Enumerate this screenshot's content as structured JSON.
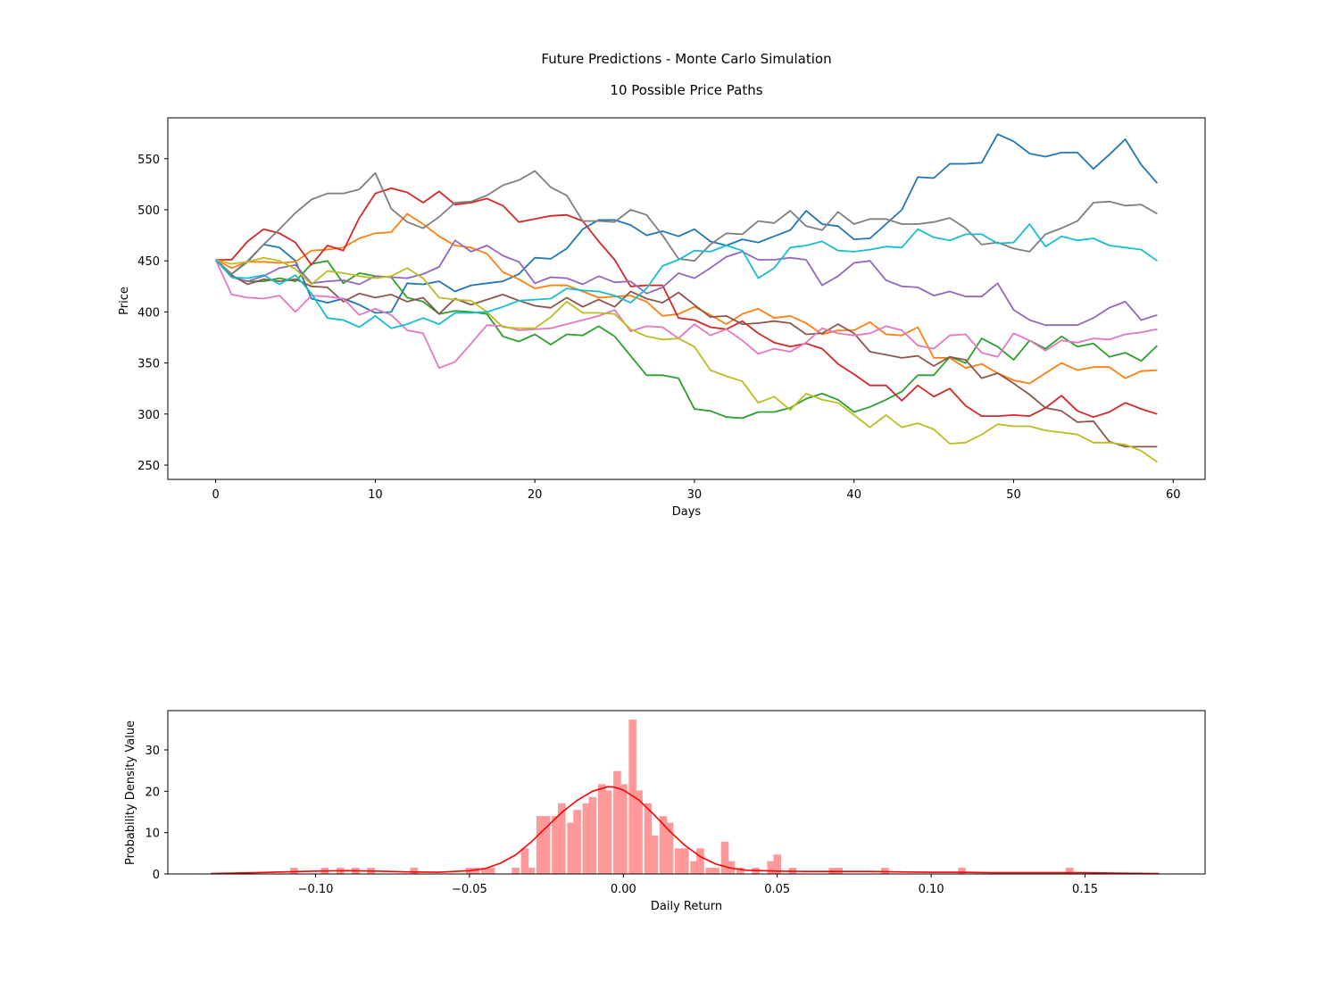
{
  "figure": {
    "suptitle": "Future Predictions - Monte Carlo Simulation"
  },
  "chart_data": [
    {
      "type": "line",
      "title": "10 Possible Price Paths",
      "xlabel": "Days",
      "ylabel": "Price",
      "xlim": [
        -3,
        62
      ],
      "ylim": [
        236,
        590
      ],
      "xticks": [
        0,
        10,
        20,
        30,
        40,
        50,
        60
      ],
      "yticks": [
        250,
        300,
        350,
        400,
        450,
        500,
        550
      ],
      "grid": false,
      "legend": "none",
      "series": [
        {
          "color": "#1f77b4",
          "values": [
            451,
            437,
            449,
            466,
            463,
            450,
            413,
            409,
            413,
            407,
            399,
            400,
            428,
            427,
            430,
            420,
            426,
            428,
            430,
            437,
            453,
            452,
            462,
            481,
            490,
            490,
            485,
            475,
            479,
            474,
            481,
            469,
            465,
            471,
            468,
            474,
            480,
            499,
            486,
            484,
            471,
            472,
            486,
            500,
            532,
            531,
            545,
            545,
            546,
            574,
            567,
            555,
            552,
            556,
            556,
            540,
            554,
            569,
            544,
            526
          ]
        },
        {
          "color": "#ff7f0e",
          "values": [
            451,
            443,
            449,
            449,
            448,
            449,
            460,
            461,
            463,
            472,
            477,
            478,
            496,
            486,
            474,
            465,
            463,
            457,
            439,
            432,
            423,
            426,
            426,
            420,
            414,
            415,
            416,
            410,
            396,
            398,
            405,
            397,
            388,
            398,
            403,
            394,
            396,
            389,
            378,
            382,
            382,
            390,
            378,
            377,
            385,
            355,
            355,
            345,
            349,
            340,
            333,
            330,
            340,
            350,
            343,
            346,
            346,
            335,
            342,
            343
          ]
        },
        {
          "color": "#2ca02c",
          "values": [
            451,
            434,
            430,
            430,
            433,
            430,
            447,
            450,
            428,
            438,
            435,
            434,
            414,
            410,
            398,
            401,
            400,
            398,
            376,
            371,
            378,
            368,
            378,
            377,
            386,
            376,
            357,
            338,
            338,
            335,
            305,
            303,
            297,
            296,
            302,
            302,
            306,
            315,
            320,
            314,
            302,
            307,
            314,
            322,
            338,
            338,
            356,
            350,
            374,
            366,
            353,
            372,
            364,
            376,
            366,
            369,
            356,
            360,
            352,
            367
          ]
        },
        {
          "color": "#d62728",
          "values": [
            451,
            451,
            469,
            481,
            477,
            468,
            446,
            465,
            460,
            492,
            516,
            521,
            517,
            507,
            518,
            505,
            507,
            511,
            504,
            488,
            491,
            494,
            495,
            489,
            469,
            451,
            425,
            426,
            426,
            394,
            392,
            385,
            383,
            391,
            379,
            370,
            366,
            369,
            364,
            349,
            339,
            328,
            328,
            313,
            328,
            317,
            325,
            308,
            298,
            298,
            299,
            298,
            306,
            318,
            303,
            297,
            302,
            311,
            305,
            300
          ]
        },
        {
          "color": "#9467bd",
          "values": [
            451,
            434,
            430,
            435,
            443,
            446,
            428,
            430,
            431,
            427,
            435,
            434,
            433,
            437,
            444,
            470,
            459,
            465,
            455,
            449,
            428,
            434,
            433,
            427,
            435,
            429,
            430,
            418,
            424,
            438,
            433,
            443,
            454,
            459,
            451,
            451,
            453,
            451,
            426,
            435,
            448,
            450,
            431,
            425,
            424,
            416,
            420,
            415,
            415,
            428,
            402,
            392,
            387,
            387,
            387,
            394,
            404,
            410,
            392,
            397
          ]
        },
        {
          "color": "#8c564b",
          "values": [
            451,
            436,
            427,
            432,
            430,
            432,
            425,
            424,
            410,
            418,
            414,
            417,
            410,
            414,
            398,
            413,
            407,
            412,
            417,
            411,
            406,
            404,
            414,
            405,
            412,
            405,
            420,
            413,
            409,
            419,
            407,
            395,
            396,
            388,
            389,
            391,
            389,
            378,
            379,
            388,
            379,
            361,
            358,
            355,
            357,
            347,
            356,
            353,
            335,
            340,
            330,
            319,
            306,
            303,
            292,
            293,
            273,
            268,
            268,
            268
          ]
        },
        {
          "color": "#e377c2",
          "values": [
            451,
            417,
            414,
            413,
            416,
            400,
            416,
            415,
            413,
            397,
            403,
            397,
            382,
            379,
            345,
            351,
            369,
            387,
            386,
            382,
            383,
            384,
            388,
            392,
            396,
            402,
            381,
            386,
            385,
            374,
            388,
            377,
            383,
            372,
            359,
            364,
            361,
            370,
            384,
            379,
            377,
            379,
            386,
            382,
            367,
            364,
            377,
            378,
            360,
            356,
            379,
            372,
            362,
            372,
            370,
            374,
            373,
            378,
            380,
            383
          ]
        },
        {
          "color": "#7f7f7f",
          "values": [
            451,
            437,
            450,
            466,
            481,
            497,
            510,
            516,
            516,
            520,
            536,
            501,
            488,
            482,
            493,
            507,
            508,
            514,
            524,
            529,
            538,
            522,
            514,
            489,
            489,
            488,
            500,
            495,
            475,
            452,
            450,
            466,
            477,
            476,
            489,
            487,
            499,
            484,
            480,
            498,
            486,
            491,
            491,
            486,
            486,
            488,
            492,
            482,
            466,
            468,
            462,
            459,
            476,
            482,
            489,
            507,
            508,
            504,
            505,
            496
          ]
        },
        {
          "color": "#bcbd22",
          "values": [
            451,
            447,
            449,
            453,
            450,
            442,
            427,
            440,
            438,
            435,
            433,
            435,
            443,
            433,
            414,
            412,
            411,
            400,
            385,
            384,
            384,
            395,
            410,
            399,
            399,
            398,
            383,
            376,
            373,
            374,
            366,
            343,
            337,
            332,
            311,
            317,
            304,
            320,
            314,
            311,
            299,
            287,
            299,
            287,
            291,
            285,
            271,
            272,
            280,
            290,
            288,
            288,
            284,
            282,
            280,
            272,
            272,
            270,
            264,
            253
          ]
        },
        {
          "color": "#17becf",
          "values": [
            451,
            434,
            433,
            436,
            427,
            436,
            418,
            394,
            392,
            385,
            396,
            384,
            388,
            394,
            388,
            399,
            399,
            400,
            405,
            411,
            412,
            413,
            423,
            421,
            420,
            416,
            409,
            423,
            445,
            451,
            460,
            459,
            465,
            460,
            433,
            443,
            463,
            465,
            469,
            460,
            459,
            461,
            464,
            463,
            481,
            473,
            470,
            476,
            476,
            467,
            468,
            486,
            464,
            474,
            470,
            472,
            465,
            463,
            461,
            450
          ]
        }
      ]
    },
    {
      "type": "histogram",
      "title": "",
      "xlabel": "Daily Return",
      "ylabel": "Probability Density Value",
      "xlim": [
        -0.148,
        0.189
      ],
      "ylim": [
        0,
        39.5
      ],
      "xticks": [
        -0.1,
        -0.05,
        0.0,
        0.05,
        0.1,
        0.15
      ],
      "xtick_labels": [
        "−0.10",
        "−0.05",
        "0.00",
        "0.05",
        "0.10",
        "0.15"
      ],
      "yticks": [
        0,
        10,
        20,
        30
      ],
      "bin_width": 0.0025,
      "bar_color": "#ff9999",
      "kde_color": "#ff0000",
      "grid": false,
      "bins": [
        {
          "x": -0.107,
          "h": 1.5
        },
        {
          "x": -0.097,
          "h": 1.5
        },
        {
          "x": -0.092,
          "h": 1.5
        },
        {
          "x": -0.087,
          "h": 1.5
        },
        {
          "x": -0.082,
          "h": 1.5
        },
        {
          "x": -0.068,
          "h": 1.5
        },
        {
          "x": -0.05,
          "h": 1.5
        },
        {
          "x": -0.048,
          "h": 1.5
        },
        {
          "x": -0.045,
          "h": 1.5
        },
        {
          "x": -0.043,
          "h": 1.5
        },
        {
          "x": -0.035,
          "h": 1.5
        },
        {
          "x": -0.032,
          "h": 6.2
        },
        {
          "x": -0.03,
          "h": 1.5
        },
        {
          "x": -0.027,
          "h": 14.0
        },
        {
          "x": -0.025,
          "h": 14.0
        },
        {
          "x": -0.022,
          "h": 14.0
        },
        {
          "x": -0.02,
          "h": 17.1
        },
        {
          "x": -0.017,
          "h": 12.4
        },
        {
          "x": -0.015,
          "h": 15.5
        },
        {
          "x": -0.012,
          "h": 17.1
        },
        {
          "x": -0.01,
          "h": 18.6
        },
        {
          "x": -0.007,
          "h": 21.7
        },
        {
          "x": -0.005,
          "h": 20.2
        },
        {
          "x": -0.002,
          "h": 24.9
        },
        {
          "x": 0.0,
          "h": 21.7
        },
        {
          "x": 0.003,
          "h": 37.3
        },
        {
          "x": 0.005,
          "h": 20.2
        },
        {
          "x": 0.008,
          "h": 17.1
        },
        {
          "x": 0.01,
          "h": 9.3
        },
        {
          "x": 0.013,
          "h": 14.0
        },
        {
          "x": 0.015,
          "h": 12.4
        },
        {
          "x": 0.018,
          "h": 6.2
        },
        {
          "x": 0.02,
          "h": 6.2
        },
        {
          "x": 0.023,
          "h": 3.1
        },
        {
          "x": 0.025,
          "h": 6.2
        },
        {
          "x": 0.028,
          "h": 1.5
        },
        {
          "x": 0.03,
          "h": 1.5
        },
        {
          "x": 0.033,
          "h": 7.8
        },
        {
          "x": 0.035,
          "h": 3.1
        },
        {
          "x": 0.038,
          "h": 1.5
        },
        {
          "x": 0.043,
          "h": 1.5
        },
        {
          "x": 0.048,
          "h": 3.1
        },
        {
          "x": 0.05,
          "h": 4.7
        },
        {
          "x": 0.055,
          "h": 1.5
        },
        {
          "x": 0.068,
          "h": 1.5
        },
        {
          "x": 0.07,
          "h": 1.5
        },
        {
          "x": 0.085,
          "h": 1.5
        },
        {
          "x": 0.11,
          "h": 1.5
        },
        {
          "x": 0.145,
          "h": 1.5
        }
      ],
      "kde": {
        "x": [
          -0.134,
          -0.12,
          -0.11,
          -0.1,
          -0.09,
          -0.08,
          -0.07,
          -0.06,
          -0.05,
          -0.045,
          -0.04,
          -0.035,
          -0.03,
          -0.025,
          -0.02,
          -0.015,
          -0.01,
          -0.005,
          -0.003,
          0.0,
          0.005,
          0.01,
          0.015,
          0.02,
          0.025,
          0.03,
          0.035,
          0.04,
          0.05,
          0.06,
          0.07,
          0.08,
          0.09,
          0.1,
          0.11,
          0.12,
          0.13,
          0.14,
          0.15,
          0.16,
          0.174
        ],
        "y": [
          0.1,
          0.3,
          0.5,
          0.7,
          0.8,
          0.7,
          0.5,
          0.4,
          0.8,
          1.3,
          2.6,
          4.6,
          7.7,
          11.3,
          14.9,
          17.8,
          20.0,
          21.1,
          21.0,
          20.3,
          17.9,
          14.3,
          10.4,
          6.9,
          4.2,
          2.4,
          1.4,
          0.9,
          0.7,
          0.6,
          0.6,
          0.6,
          0.5,
          0.4,
          0.4,
          0.3,
          0.3,
          0.3,
          0.3,
          0.2,
          0.1
        ]
      }
    }
  ]
}
